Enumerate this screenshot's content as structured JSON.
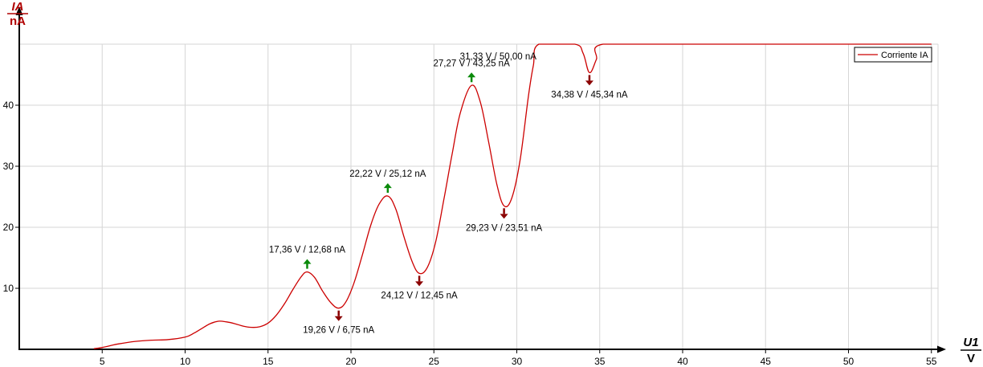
{
  "chart_data": {
    "type": "line",
    "y_axis_label": {
      "quantity": "IA",
      "unit": "nA"
    },
    "x_axis_label": {
      "quantity": "U1",
      "unit": "V"
    },
    "xlim": [
      0,
      56
    ],
    "ylim": [
      0,
      50
    ],
    "x_ticks": [
      5,
      10,
      15,
      20,
      25,
      30,
      35,
      40,
      45,
      50,
      55
    ],
    "y_ticks": [
      10,
      20,
      30,
      40
    ],
    "grid": true,
    "legend_position": "top-right",
    "series": [
      {
        "name": "Corriente IA",
        "color": "#cc0000",
        "x": [
          4.5,
          5.0,
          5.5,
          6.0,
          7.0,
          8.0,
          9.0,
          10.0,
          10.5,
          11.0,
          11.5,
          12.0,
          12.5,
          13.0,
          13.5,
          14.0,
          14.5,
          15.0,
          15.5,
          16.0,
          16.5,
          17.0,
          17.36,
          17.8,
          18.3,
          18.8,
          19.26,
          19.7,
          20.2,
          20.7,
          21.2,
          21.7,
          22.22,
          22.7,
          23.2,
          23.7,
          24.12,
          24.6,
          25.1,
          25.6,
          26.1,
          26.6,
          27.27,
          27.8,
          28.3,
          28.8,
          29.23,
          29.7,
          30.2,
          30.7,
          31.0,
          31.33,
          33.5,
          34.0,
          34.38,
          34.8,
          35.2,
          40.0,
          45.0,
          50.0,
          55.0
        ],
        "y": [
          0.1,
          0.3,
          0.6,
          0.9,
          1.3,
          1.5,
          1.6,
          2.0,
          2.6,
          3.4,
          4.2,
          4.6,
          4.5,
          4.2,
          3.8,
          3.6,
          3.7,
          4.3,
          5.6,
          7.5,
          9.8,
          11.9,
          12.68,
          11.8,
          9.5,
          7.6,
          6.75,
          7.8,
          11.0,
          15.6,
          20.4,
          23.8,
          25.12,
          23.0,
          18.4,
          14.3,
          12.45,
          13.4,
          17.5,
          24.5,
          32.0,
          38.8,
          43.25,
          40.5,
          34.0,
          27.0,
          23.51,
          24.8,
          31.0,
          41.5,
          46.5,
          50.0,
          50.0,
          48.5,
          45.34,
          47.5,
          50.0,
          50.0,
          50.0,
          50.0,
          50.0
        ]
      }
    ],
    "annotations": [
      {
        "label": "17,36 V / 12,68 nA",
        "x": 17.36,
        "y": 12.68,
        "kind": "max"
      },
      {
        "label": "19,26 V / 6,75 nA",
        "x": 19.26,
        "y": 6.75,
        "kind": "min"
      },
      {
        "label": "22,22 V / 25,12 nA",
        "x": 22.22,
        "y": 25.12,
        "kind": "max"
      },
      {
        "label": "24,12 V / 12,45 nA",
        "x": 24.12,
        "y": 12.45,
        "kind": "min"
      },
      {
        "label": "27,27 V / 43,25 nA",
        "x": 27.27,
        "y": 43.25,
        "kind": "max"
      },
      {
        "label": "29,23 V / 23,51 nA",
        "x": 29.23,
        "y": 23.51,
        "kind": "min"
      },
      {
        "label": "31,33 V / 50,00 nA",
        "x": 31.33,
        "y": 50.0,
        "kind": "text"
      },
      {
        "label": "34,38 V / 45,34 nA",
        "x": 34.38,
        "y": 45.34,
        "kind": "min"
      }
    ],
    "marker_colors": {
      "max": "#0a8a0a",
      "min": "#8b0000"
    }
  }
}
